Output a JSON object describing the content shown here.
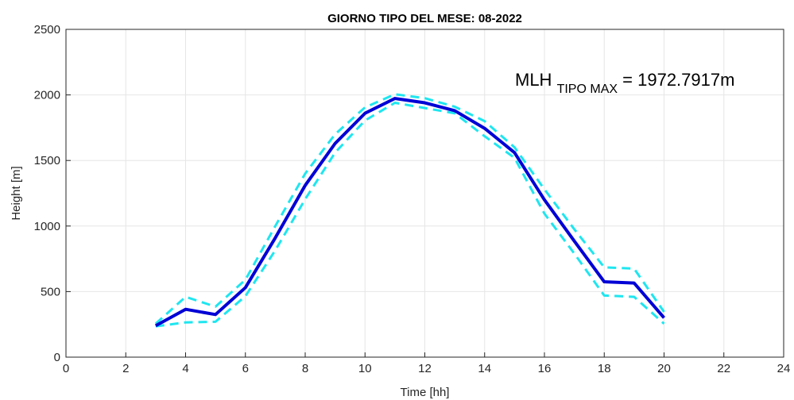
{
  "chart_data": {
    "type": "line",
    "title": "GIORNO TIPO DEL MESE:  08-2022",
    "xlabel": "Time [hh]",
    "ylabel": "Height [m]",
    "xlim": [
      0,
      24
    ],
    "ylim": [
      0,
      2500
    ],
    "xticks": [
      0,
      2,
      4,
      6,
      8,
      10,
      12,
      14,
      16,
      18,
      20,
      22,
      24
    ],
    "yticks": [
      0,
      500,
      1000,
      1500,
      2000,
      2500
    ],
    "grid": true,
    "annotation": {
      "main": "MLH",
      "subscript": "TIPO MAX",
      "value": " = 1972.7917m"
    },
    "x": [
      3,
      4,
      5,
      6,
      7,
      8,
      9,
      10,
      11,
      12,
      13,
      14,
      15,
      16,
      17,
      18,
      19,
      20
    ],
    "series": [
      {
        "color": "#0000d6",
        "style": "solid",
        "values": [
          240,
          365,
          325,
          530,
          910,
          1310,
          1630,
          1860,
          1973,
          1940,
          1880,
          1745,
          1560,
          1200,
          885,
          575,
          565,
          300
        ]
      },
      {
        "color": "#1ee6f0",
        "style": "dashed",
        "values": [
          255,
          460,
          385,
          590,
          1000,
          1400,
          1700,
          1905,
          2005,
          1975,
          1910,
          1800,
          1600,
          1280,
          975,
          685,
          675,
          345
        ]
      },
      {
        "color": "#1ee6f0",
        "style": "dashed",
        "values": [
          235,
          265,
          270,
          465,
          815,
          1205,
          1560,
          1805,
          1940,
          1900,
          1860,
          1685,
          1520,
          1095,
          790,
          470,
          460,
          255
        ]
      }
    ]
  }
}
